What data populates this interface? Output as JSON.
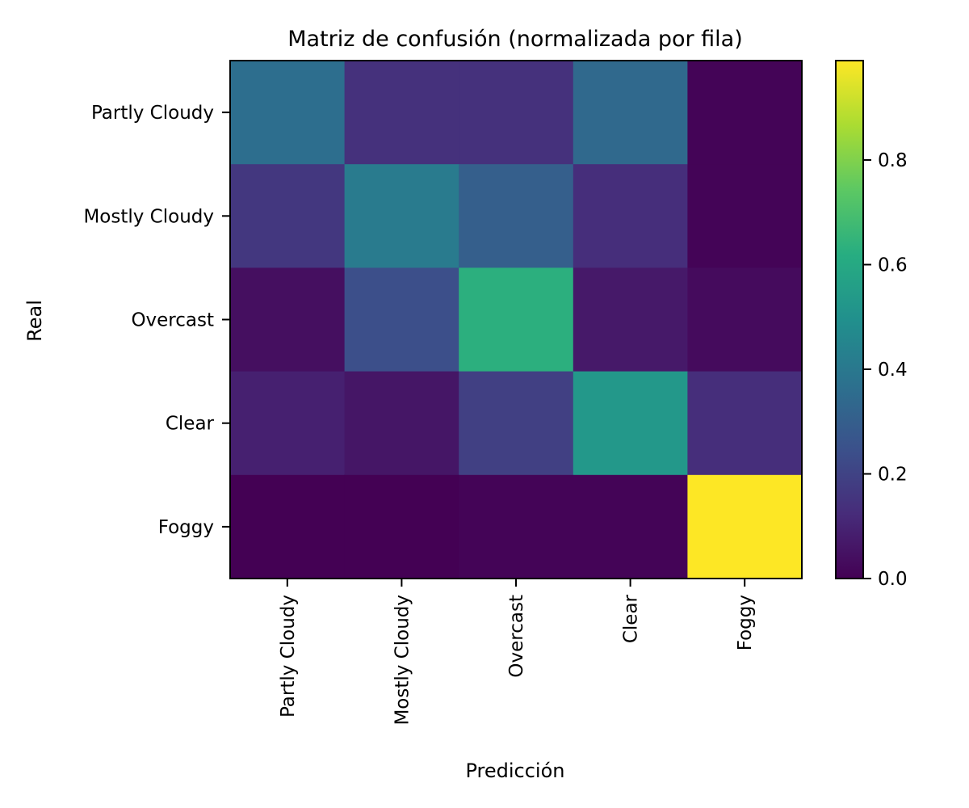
{
  "chart_data": {
    "type": "heatmap",
    "title": "Matriz de confusión (normalizada por fila)",
    "xlabel": "Predicción",
    "ylabel": "Real",
    "x_categories": [
      "Partly Cloudy",
      "Mostly Cloudy",
      "Overcast",
      "Clear",
      "Foggy"
    ],
    "y_categories": [
      "Partly Cloudy",
      "Mostly Cloudy",
      "Overcast",
      "Clear",
      "Foggy"
    ],
    "values": [
      [
        0.36,
        0.14,
        0.14,
        0.34,
        0.01
      ],
      [
        0.16,
        0.41,
        0.3,
        0.13,
        0.01
      ],
      [
        0.04,
        0.24,
        0.63,
        0.07,
        0.03
      ],
      [
        0.09,
        0.06,
        0.19,
        0.53,
        0.13
      ],
      [
        0.0,
        0.0,
        0.01,
        0.01,
        0.99
      ]
    ],
    "colormap": "viridis",
    "colorbar": {
      "range": [
        0,
        0.99
      ],
      "ticks": [
        0.0,
        0.2,
        0.4,
        0.6,
        0.8
      ],
      "tick_labels": [
        "0.0",
        "0.2",
        "0.4",
        "0.6",
        "0.8"
      ]
    },
    "grid": false
  }
}
